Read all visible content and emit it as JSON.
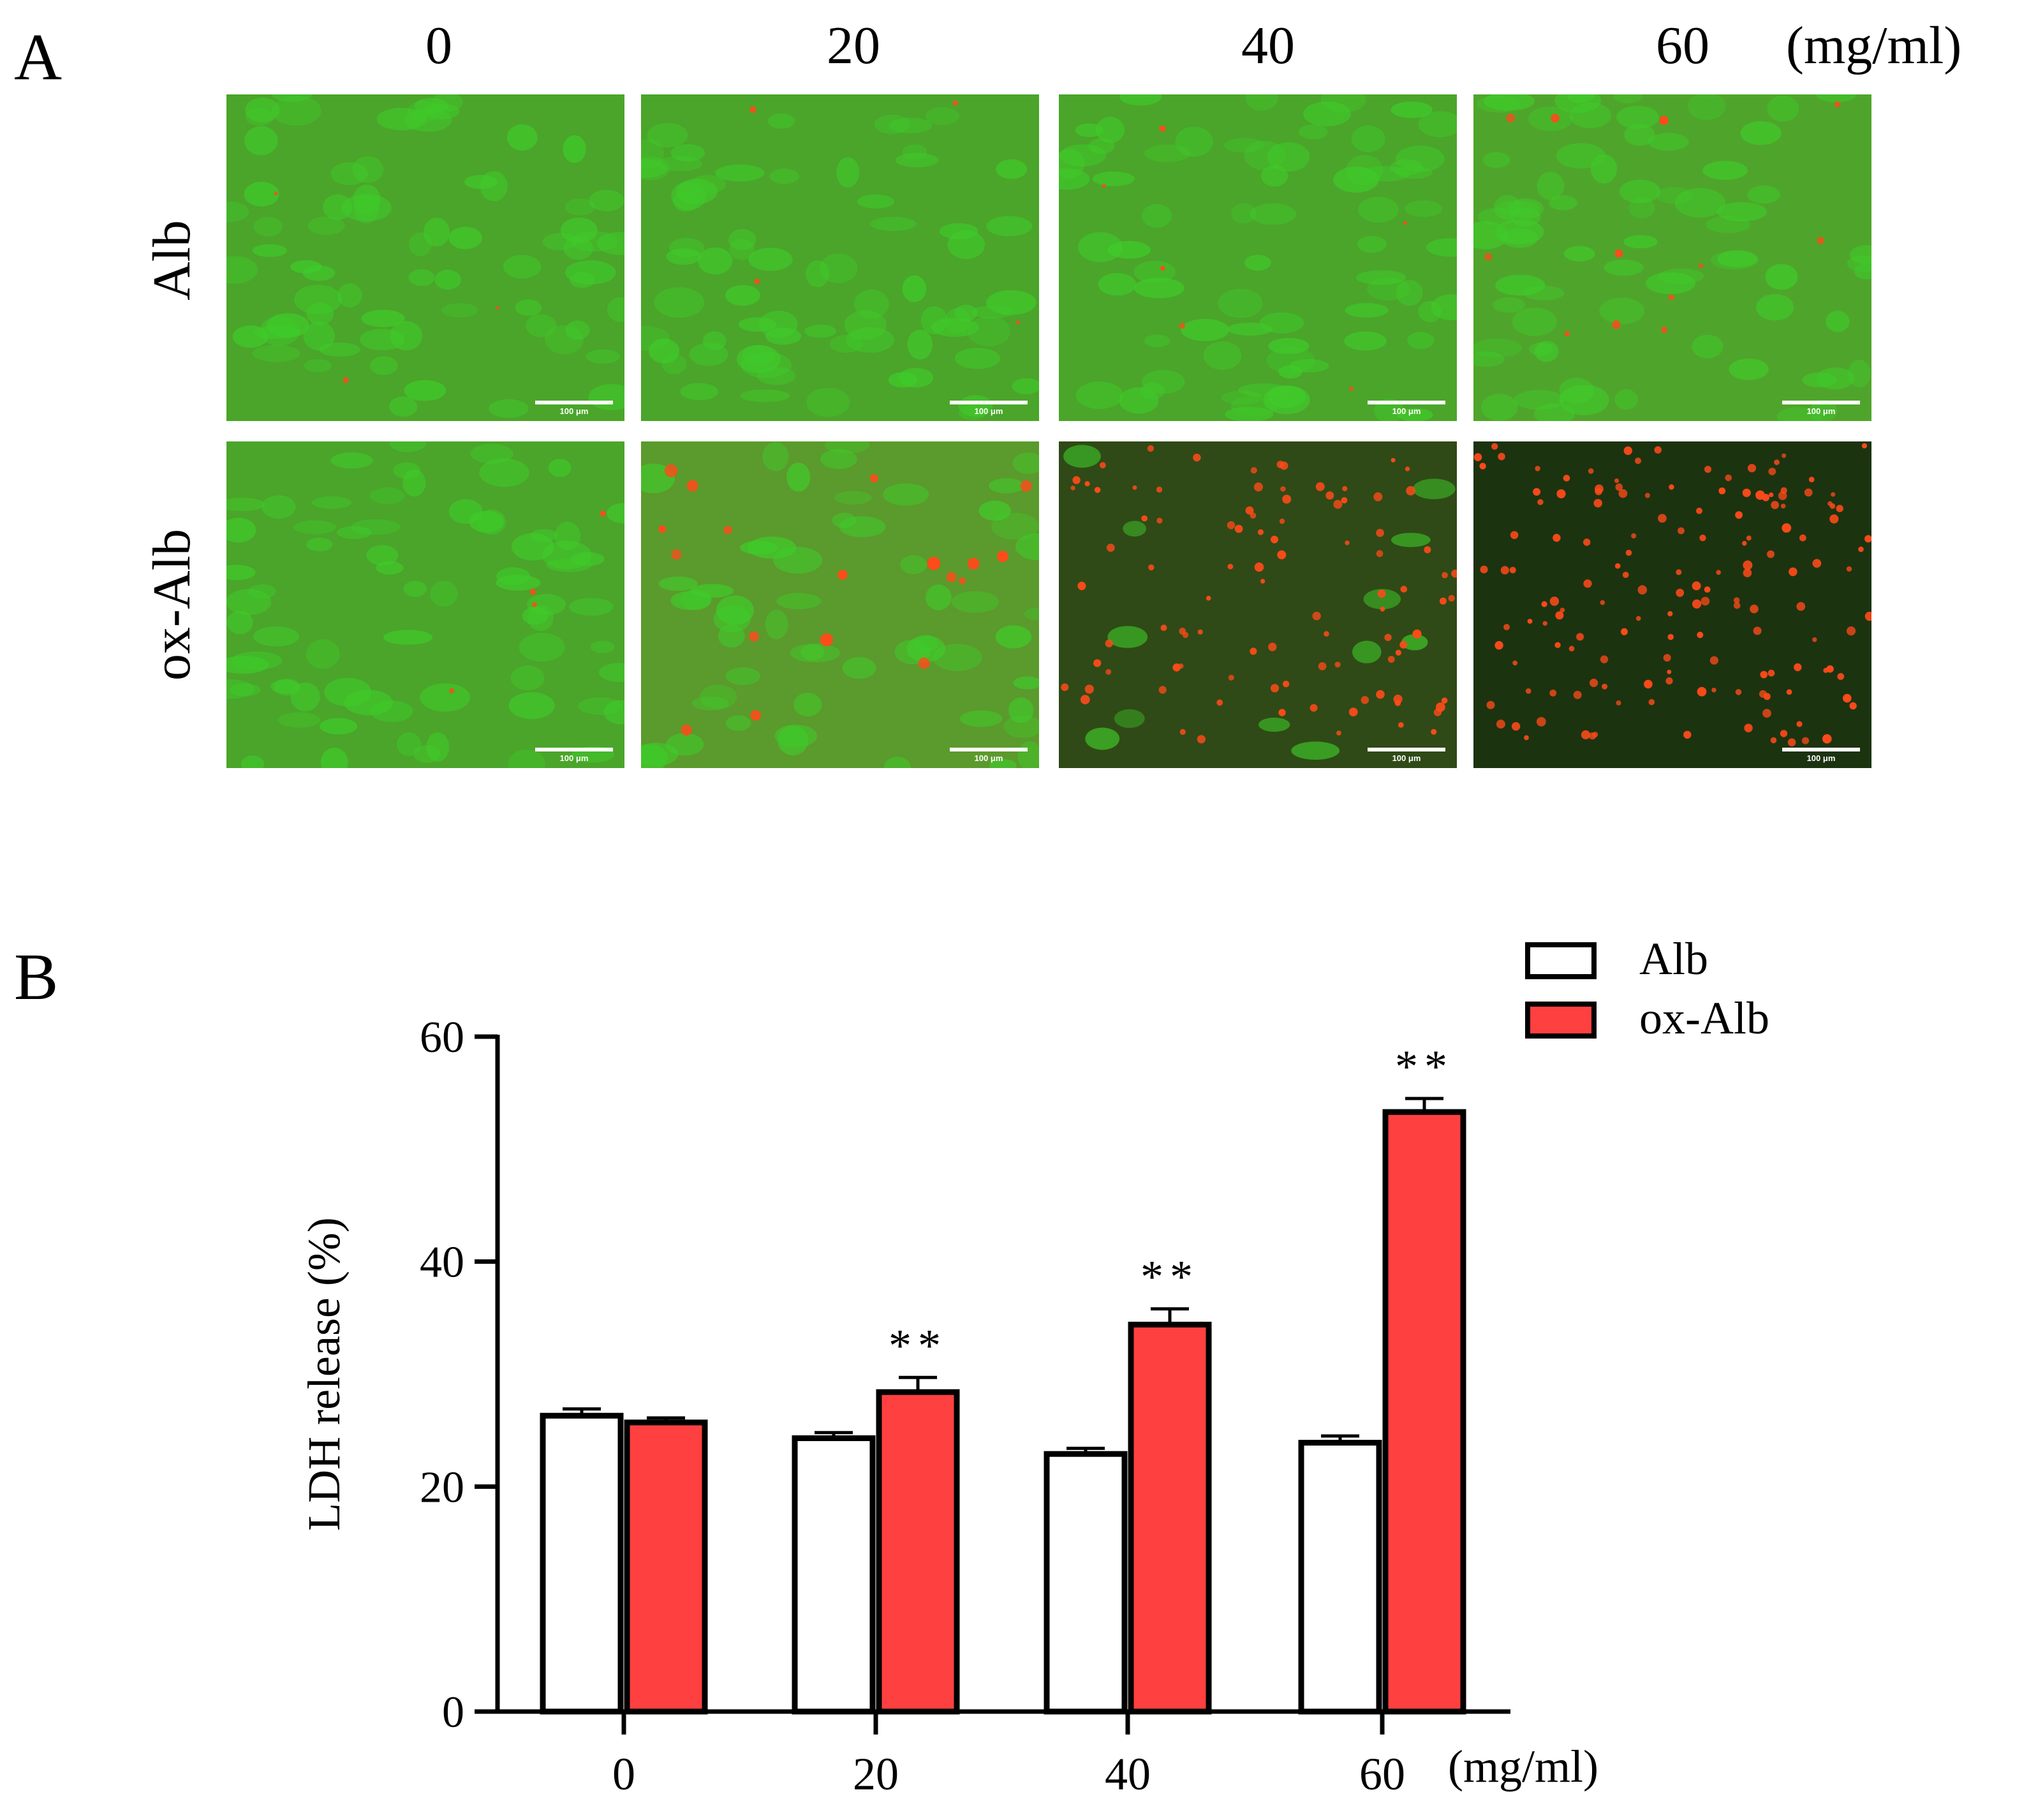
{
  "panel_a": {
    "letter": "A",
    "concentrations": [
      "0",
      "20",
      "40",
      "60"
    ],
    "unit": "(mg/ml)",
    "rows": [
      "Alb",
      "ox-Alb"
    ],
    "scale_bar_text": "100 μm",
    "live_stain_color": "#3fcc2a",
    "dead_stain_color": "#ff4a1a"
  },
  "panel_b": {
    "letter": "B"
  },
  "chart_data": {
    "type": "bar",
    "categories": [
      "0",
      "20",
      "40",
      "60"
    ],
    "xlabel": "(mg/ml)",
    "ylabel": "LDH release (%)",
    "ylim": [
      0,
      60
    ],
    "yticks": [
      "0",
      "20",
      "40",
      "60"
    ],
    "series": [
      {
        "name": "Alb",
        "values": [
          26.3,
          24.3,
          22.9,
          23.9
        ],
        "errors": [
          0.6,
          0.5,
          0.5,
          0.6
        ],
        "color": "#ffffff",
        "annotations": [
          "",
          "",
          "",
          ""
        ]
      },
      {
        "name": "ox-Alb",
        "values": [
          25.7,
          28.4,
          34.4,
          53.3
        ],
        "errors": [
          0.4,
          1.3,
          1.4,
          1.2
        ],
        "color": "#ff4040",
        "annotations": [
          "",
          "**",
          "**",
          "**"
        ]
      }
    ],
    "legend_position": "top-right",
    "grid": false
  }
}
